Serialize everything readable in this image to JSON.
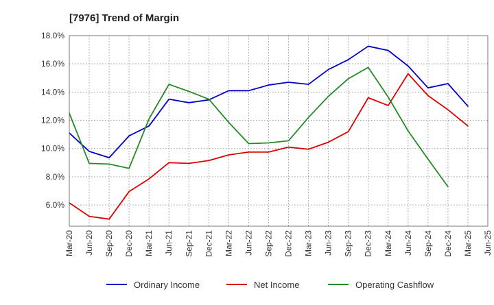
{
  "chart_data": {
    "type": "line",
    "title": "[7976]  Trend of Margin",
    "xlabel": "",
    "ylabel": "",
    "ylim": [
      4.5,
      18.0
    ],
    "yticks": [
      6.0,
      8.0,
      10.0,
      12.0,
      14.0,
      16.0,
      18.0
    ],
    "ytick_labels": [
      "6.0%",
      "8.0%",
      "10.0%",
      "12.0%",
      "14.0%",
      "16.0%",
      "18.0%"
    ],
    "categories": [
      "Mar-20",
      "Jun-20",
      "Sep-20",
      "Dec-20",
      "Mar-21",
      "Jun-21",
      "Sep-21",
      "Dec-21",
      "Mar-22",
      "Jun-22",
      "Sep-22",
      "Dec-22",
      "Mar-23",
      "Jun-23",
      "Sep-23",
      "Dec-23",
      "Mar-24",
      "Jun-24",
      "Sep-24",
      "Dec-24",
      "Mar-25",
      "Jun-25"
    ],
    "grid": true,
    "legend_position": "bottom",
    "series": [
      {
        "name": "Ordinary Income",
        "color": "#0000cc",
        "values": [
          11.1,
          9.8,
          9.35,
          10.9,
          11.6,
          13.5,
          13.25,
          13.45,
          14.1,
          14.1,
          14.5,
          14.7,
          14.55,
          15.6,
          16.3,
          17.25,
          16.95,
          15.85,
          14.3,
          14.6,
          13.0,
          null
        ]
      },
      {
        "name": "Net Income",
        "color": "#dd0000",
        "values": [
          6.15,
          5.2,
          5.0,
          6.95,
          7.85,
          9.0,
          8.95,
          9.15,
          9.55,
          9.75,
          9.75,
          10.1,
          9.95,
          10.45,
          11.2,
          13.6,
          13.05,
          15.3,
          13.75,
          12.75,
          11.6,
          null
        ]
      },
      {
        "name": "Operating Cashflow",
        "color": "#228b22",
        "values": [
          12.5,
          8.95,
          8.9,
          8.6,
          12.1,
          14.55,
          14.05,
          13.5,
          11.85,
          10.35,
          10.4,
          10.55,
          12.2,
          13.7,
          14.95,
          15.75,
          13.65,
          11.25,
          9.25,
          7.3,
          null,
          null
        ]
      }
    ]
  }
}
